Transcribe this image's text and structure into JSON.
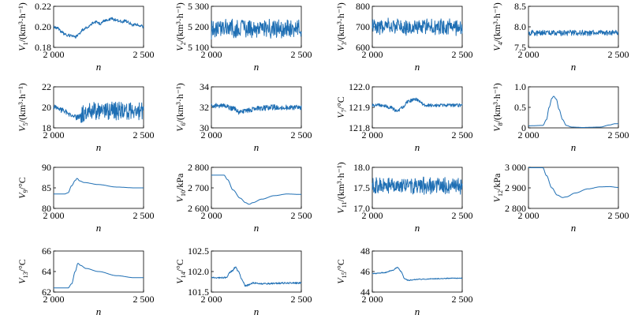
{
  "line_color": "#1f6fb4",
  "chart_data": [
    {
      "type": "line",
      "ylabel_var": "V",
      "ylabel_sub": "1",
      "ylabel_unit": "/(km³·h⁻¹)",
      "xlabel": "n",
      "xlim": [
        2000,
        2500
      ],
      "xticks": [
        2000,
        2500
      ],
      "xtick_labels": [
        "2 000",
        "2 500"
      ],
      "ylim": [
        0.18,
        0.22
      ],
      "yticks": [
        0.18,
        0.2,
        0.22
      ],
      "ytick_labels": [
        "0.18",
        "0.20",
        "0.22"
      ],
      "series": [
        {
          "kind": "trend",
          "noise": 0.0015,
          "points": [
            [
              2000,
              0.2
            ],
            [
              2020,
              0.199
            ],
            [
              2040,
              0.196
            ],
            [
              2060,
              0.193
            ],
            [
              2080,
              0.192
            ],
            [
              2100,
              0.191
            ],
            [
              2120,
              0.19
            ],
            [
              2140,
              0.193
            ],
            [
              2160,
              0.197
            ],
            [
              2180,
              0.199
            ],
            [
              2200,
              0.201
            ],
            [
              2220,
              0.204
            ],
            [
              2240,
              0.205
            ],
            [
              2260,
              0.203
            ],
            [
              2280,
              0.206
            ],
            [
              2300,
              0.206
            ],
            [
              2320,
              0.208
            ],
            [
              2340,
              0.207
            ],
            [
              2360,
              0.206
            ],
            [
              2380,
              0.205
            ],
            [
              2400,
              0.206
            ],
            [
              2420,
              0.204
            ],
            [
              2440,
              0.202
            ],
            [
              2460,
              0.202
            ],
            [
              2480,
              0.201
            ],
            [
              2500,
              0.2
            ]
          ]
        }
      ]
    },
    {
      "type": "line",
      "ylabel_var": "V",
      "ylabel_sub": "2",
      "ylabel_unit": "/(km³·h⁻¹)",
      "xlabel": "n",
      "xlim": [
        2000,
        2500
      ],
      "xticks": [
        2000,
        2500
      ],
      "xtick_labels": [
        "2 000",
        "2 500"
      ],
      "ylim": [
        5100,
        5300
      ],
      "yticks": [
        5100,
        5200,
        5300
      ],
      "ytick_labels": [
        "5 100",
        "5 200",
        "5 300"
      ],
      "series": [
        {
          "kind": "noise",
          "mean": 5190,
          "amp": 40,
          "seed": 2
        }
      ]
    },
    {
      "type": "line",
      "ylabel_var": "V",
      "ylabel_sub": "3",
      "ylabel_unit": "/(km³·h⁻¹)",
      "xlabel": "n",
      "xlim": [
        2000,
        2500
      ],
      "xticks": [
        2000,
        2500
      ],
      "xtick_labels": [
        "2 000",
        "2 500"
      ],
      "ylim": [
        600,
        800
      ],
      "yticks": [
        600,
        700,
        800
      ],
      "ytick_labels": [
        "600",
        "700",
        "800"
      ],
      "series": [
        {
          "kind": "noise",
          "mean": 700,
          "amp": 35,
          "seed": 3
        }
      ]
    },
    {
      "type": "line",
      "ylabel_var": "V",
      "ylabel_sub": "4",
      "ylabel_unit": "/(km³·h⁻¹)",
      "xlabel": "n",
      "xlim": [
        2000,
        2500
      ],
      "xticks": [
        2000,
        2500
      ],
      "xtick_labels": [
        "2 000",
        "2 500"
      ],
      "ylim": [
        7.5,
        8.5
      ],
      "yticks": [
        7.5,
        8.0,
        8.5
      ],
      "ytick_labels": [
        "7.5",
        "8.0",
        "8.5"
      ],
      "series": [
        {
          "kind": "noise",
          "mean": 7.85,
          "amp": 0.06,
          "seed": 4
        }
      ]
    },
    {
      "type": "line",
      "ylabel_var": "V",
      "ylabel_sub": "5",
      "ylabel_unit": "/(km³·h⁻¹)",
      "xlabel": "n",
      "xlim": [
        2000,
        2500
      ],
      "xticks": [
        2000,
        2500
      ],
      "xtick_labels": [
        "2 000",
        "2 500"
      ],
      "ylim": [
        18,
        22
      ],
      "yticks": [
        18,
        20,
        22
      ],
      "ytick_labels": [
        "18",
        "20",
        "22"
      ],
      "series": [
        {
          "kind": "trend",
          "noise": 0.25,
          "points": [
            [
              2000,
              20.0
            ],
            [
              2050,
              19.7
            ],
            [
              2100,
              19.3
            ],
            [
              2130,
              19.0
            ],
            [
              2150,
              19.2
            ],
            [
              2200,
              19.6
            ],
            [
              2300,
              19.7
            ],
            [
              2400,
              19.6
            ],
            [
              2500,
              19.6
            ]
          ],
          "noise_after": 2150,
          "noise_after_amp": 0.9
        }
      ]
    },
    {
      "type": "line",
      "ylabel_var": "V",
      "ylabel_sub": "6",
      "ylabel_unit": "/(km³·h⁻¹)",
      "xlabel": "n",
      "xlim": [
        2000,
        2500
      ],
      "xticks": [
        2000,
        2500
      ],
      "xtick_labels": [
        "2 000",
        "2 500"
      ],
      "ylim": [
        30,
        34
      ],
      "yticks": [
        30,
        32,
        34
      ],
      "ytick_labels": [
        "30",
        "32",
        "34"
      ],
      "series": [
        {
          "kind": "trend",
          "noise": 0.25,
          "points": [
            [
              2000,
              32.2
            ],
            [
              2080,
              32.1
            ],
            [
              2120,
              31.9
            ],
            [
              2160,
              31.5
            ],
            [
              2200,
              31.7
            ],
            [
              2260,
              31.9
            ],
            [
              2350,
              32.0
            ],
            [
              2500,
              32.0
            ]
          ]
        }
      ]
    },
    {
      "type": "line",
      "ylabel_var": "V",
      "ylabel_sub": "7",
      "ylabel_unit": "/°C",
      "xlabel": "n",
      "xlim": [
        2000,
        2500
      ],
      "xticks": [
        2000,
        2500
      ],
      "xtick_labels": [
        "2 000",
        "2 500"
      ],
      "ylim": [
        121.8,
        122.0
      ],
      "yticks": [
        121.8,
        121.9,
        122.0
      ],
      "ytick_labels": [
        "121.8",
        "121.9",
        "122.0"
      ],
      "series": [
        {
          "kind": "trend",
          "noise": 0.008,
          "points": [
            [
              2000,
              121.91
            ],
            [
              2060,
              121.91
            ],
            [
              2100,
              121.9
            ],
            [
              2140,
              121.88
            ],
            [
              2170,
              121.9
            ],
            [
              2200,
              121.93
            ],
            [
              2240,
              121.94
            ],
            [
              2300,
              121.91
            ],
            [
              2400,
              121.91
            ],
            [
              2500,
              121.91
            ]
          ]
        }
      ]
    },
    {
      "type": "line",
      "ylabel_var": "V",
      "ylabel_sub": "8",
      "ylabel_unit": "/(km³·h⁻¹)",
      "xlabel": "n",
      "xlim": [
        2000,
        2500
      ],
      "xticks": [
        2000,
        2500
      ],
      "xtick_labels": [
        "2 000",
        "2 500"
      ],
      "ylim": [
        0,
        1.0
      ],
      "yticks": [
        0,
        0.5,
        1.0
      ],
      "ytick_labels": [
        "0",
        "0.5",
        "1.0"
      ],
      "series": [
        {
          "kind": "trend",
          "noise": 0,
          "points": [
            [
              2000,
              0.05
            ],
            [
              2080,
              0.06
            ],
            [
              2100,
              0.2
            ],
            [
              2115,
              0.5
            ],
            [
              2130,
              0.72
            ],
            [
              2140,
              0.77
            ],
            [
              2155,
              0.7
            ],
            [
              2170,
              0.45
            ],
            [
              2190,
              0.2
            ],
            [
              2210,
              0.06
            ],
            [
              2240,
              0.02
            ],
            [
              2300,
              0.01
            ],
            [
              2400,
              0.02
            ],
            [
              2450,
              0.07
            ],
            [
              2480,
              0.1
            ],
            [
              2500,
              0.1
            ]
          ]
        }
      ]
    },
    {
      "type": "line",
      "ylabel_var": "V",
      "ylabel_sub": "9",
      "ylabel_unit": "/°C",
      "xlabel": "n",
      "xlim": [
        2000,
        2500
      ],
      "xticks": [
        2000,
        2500
      ],
      "xtick_labels": [
        "2 000",
        "2 500"
      ],
      "ylim": [
        80,
        90
      ],
      "yticks": [
        80,
        85,
        90
      ],
      "ytick_labels": [
        "80",
        "85",
        "90"
      ],
      "series": [
        {
          "kind": "trend",
          "noise": 0,
          "points": [
            [
              2000,
              83.5
            ],
            [
              2060,
              83.5
            ],
            [
              2080,
              83.8
            ],
            [
              2100,
              85.5
            ],
            [
              2120,
              86.8
            ],
            [
              2130,
              87.3
            ],
            [
              2145,
              86.7
            ],
            [
              2170,
              86.3
            ],
            [
              2250,
              85.8
            ],
            [
              2350,
              85.2
            ],
            [
              2450,
              85.0
            ],
            [
              2500,
              85.0
            ]
          ]
        }
      ]
    },
    {
      "type": "line",
      "ylabel_var": "V",
      "ylabel_sub": "10",
      "ylabel_unit": "/kPa",
      "xlabel": "n",
      "xlim": [
        2000,
        2500
      ],
      "xticks": [
        2000,
        2500
      ],
      "xtick_labels": [
        "2 000",
        "2 500"
      ],
      "ylim": [
        2600,
        2800
      ],
      "yticks": [
        2600,
        2700,
        2800
      ],
      "ytick_labels": [
        "2 600",
        "2 700",
        "2 800"
      ],
      "series": [
        {
          "kind": "trend",
          "noise": 0,
          "points": [
            [
              2000,
              2762
            ],
            [
              2070,
              2762
            ],
            [
              2090,
              2740
            ],
            [
              2120,
              2690
            ],
            [
              2160,
              2650
            ],
            [
              2190,
              2628
            ],
            [
              2210,
              2620
            ],
            [
              2230,
              2628
            ],
            [
              2280,
              2645
            ],
            [
              2350,
              2662
            ],
            [
              2420,
              2670
            ],
            [
              2500,
              2668
            ]
          ]
        }
      ]
    },
    {
      "type": "line",
      "ylabel_var": "V",
      "ylabel_sub": "11",
      "ylabel_unit": "/(km³·h⁻¹)",
      "xlabel": "n",
      "xlim": [
        2000,
        2500
      ],
      "xticks": [
        2000,
        2500
      ],
      "xtick_labels": [
        "2 000",
        "2 500"
      ],
      "ylim": [
        17.0,
        18.0
      ],
      "yticks": [
        17.0,
        17.5,
        18.0
      ],
      "ytick_labels": [
        "17.0",
        "17.5",
        "18.0"
      ],
      "series": [
        {
          "kind": "noise",
          "mean": 17.55,
          "amp": 0.18,
          "seed": 11
        }
      ]
    },
    {
      "type": "line",
      "ylabel_var": "V",
      "ylabel_sub": "12",
      "ylabel_unit": "/kPa",
      "xlabel": "n",
      "xlim": [
        2000,
        2500
      ],
      "xticks": [
        2000,
        2500
      ],
      "xtick_labels": [
        "2 000",
        "2 500"
      ],
      "ylim": [
        2800,
        3000
      ],
      "yticks": [
        2800,
        2900,
        3000
      ],
      "ytick_labels": [
        "2 800",
        "2 900",
        "3 000"
      ],
      "series": [
        {
          "kind": "trend",
          "noise": 0,
          "points": [
            [
              2000,
              2998
            ],
            [
              2080,
              2998
            ],
            [
              2100,
              2960
            ],
            [
              2130,
              2900
            ],
            [
              2160,
              2865
            ],
            [
              2190,
              2853
            ],
            [
              2210,
              2856
            ],
            [
              2260,
              2875
            ],
            [
              2330,
              2895
            ],
            [
              2400,
              2905
            ],
            [
              2450,
              2906
            ],
            [
              2500,
              2902
            ]
          ]
        }
      ]
    },
    {
      "type": "line",
      "ylabel_var": "V",
      "ylabel_sub": "13",
      "ylabel_unit": "/°C",
      "xlabel": "n",
      "xlim": [
        2000,
        2500
      ],
      "xticks": [
        2000,
        2500
      ],
      "xtick_labels": [
        "2 000",
        "2 500"
      ],
      "ylim": [
        62,
        66
      ],
      "yticks": [
        62,
        64,
        66
      ],
      "ytick_labels": [
        "62",
        "64",
        "66"
      ],
      "series": [
        {
          "kind": "trend",
          "noise": 0,
          "points": [
            [
              2000,
              62.4
            ],
            [
              2080,
              62.4
            ],
            [
              2100,
              62.8
            ],
            [
              2120,
              64.0
            ],
            [
              2135,
              64.8
            ],
            [
              2150,
              64.6
            ],
            [
              2180,
              64.3
            ],
            [
              2250,
              64.0
            ],
            [
              2350,
              63.6
            ],
            [
              2450,
              63.4
            ],
            [
              2500,
              63.4
            ]
          ]
        }
      ]
    },
    {
      "type": "line",
      "ylabel_var": "V",
      "ylabel_sub": "14",
      "ylabel_unit": "/°C",
      "xlabel": "n",
      "xlim": [
        2000,
        2500
      ],
      "xticks": [
        2000,
        2500
      ],
      "xtick_labels": [
        "2 000",
        "2 500"
      ],
      "ylim": [
        101.5,
        102.5
      ],
      "yticks": [
        101.5,
        102.0,
        102.5
      ],
      "ytick_labels": [
        "101.5",
        "102.0",
        "102.5"
      ],
      "series": [
        {
          "kind": "trend",
          "noise": 0.02,
          "points": [
            [
              2000,
              101.85
            ],
            [
              2080,
              101.85
            ],
            [
              2110,
              102.0
            ],
            [
              2135,
              102.1
            ],
            [
              2150,
              102.0
            ],
            [
              2170,
              101.8
            ],
            [
              2190,
              101.65
            ],
            [
              2230,
              101.72
            ],
            [
              2300,
              101.7
            ],
            [
              2400,
              101.72
            ],
            [
              2500,
              101.72
            ]
          ]
        }
      ]
    },
    {
      "type": "line",
      "ylabel_var": "V",
      "ylabel_sub": "15",
      "ylabel_unit": "/°C",
      "xlabel": "n",
      "xlim": [
        2000,
        2500
      ],
      "xticks": [
        2000,
        2500
      ],
      "xtick_labels": [
        "2 000",
        "2 500"
      ],
      "ylim": [
        44,
        48
      ],
      "yticks": [
        44,
        46,
        48
      ],
      "ytick_labels": [
        "44",
        "46",
        "48"
      ],
      "series": [
        {
          "kind": "trend",
          "noise": 0.04,
          "points": [
            [
              2000,
              45.8
            ],
            [
              2070,
              45.9
            ],
            [
              2110,
              46.1
            ],
            [
              2140,
              46.4
            ],
            [
              2160,
              46.0
            ],
            [
              2180,
              45.3
            ],
            [
              2200,
              45.15
            ],
            [
              2260,
              45.25
            ],
            [
              2350,
              45.3
            ],
            [
              2450,
              45.35
            ],
            [
              2500,
              45.35
            ]
          ]
        }
      ]
    }
  ]
}
